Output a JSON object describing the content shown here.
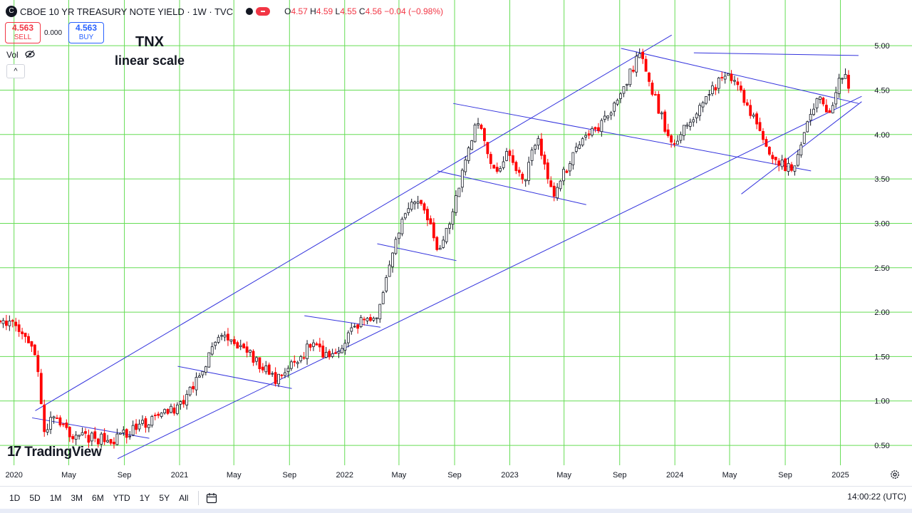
{
  "header": {
    "logo_letter": "C",
    "title": "CBOE 10 YR TREASURY NOTE YIELD · 1W · TVC",
    "ohlc": [
      {
        "k": "O",
        "v": "4.57"
      },
      {
        "k": "H",
        "v": "4.59"
      },
      {
        "k": "L",
        "v": "4.55"
      },
      {
        "k": "C",
        "v": "4.56"
      },
      {
        "k": "",
        "v": "−0.04 (−0.98%)"
      }
    ]
  },
  "trade": {
    "sell_price": "4.563",
    "sell_label": "SELL",
    "spread": "0.000",
    "buy_price": "4.563",
    "buy_label": "BUY"
  },
  "vol_label": "Vol",
  "collapse_glyph": "^",
  "annotation": {
    "line1": "TNX",
    "line2": "linear scale"
  },
  "logo_text": "TradingView",
  "ranges": [
    "1D",
    "5D",
    "1M",
    "3M",
    "6M",
    "YTD",
    "1Y",
    "5Y",
    "All"
  ],
  "clock": "14:00:22 (UTC)",
  "colors": {
    "grid": "#66dd55",
    "up": "#131722",
    "down": "#ff0000",
    "channel": "#3333dd",
    "accent": "#2962ff"
  },
  "chart_data": {
    "type": "candlestick",
    "y_axis_side": "right",
    "y_ticks": [
      0.5,
      1.0,
      1.5,
      2.0,
      2.5,
      3.0,
      3.5,
      4.0,
      4.5,
      5.0
    ],
    "ylim": [
      0.3,
      5.25
    ],
    "x_ticks": [
      "2020",
      "May",
      "Sep",
      "2021",
      "May",
      "Sep",
      "2022",
      "May",
      "Sep",
      "2023",
      "May",
      "Sep",
      "2024",
      "May",
      "Sep",
      "2025"
    ],
    "x_tick_dates": [
      "2020-01",
      "2020-05",
      "2020-09",
      "2021-01",
      "2021-05",
      "2021-09",
      "2022-01",
      "2022-05",
      "2022-09",
      "2023-01",
      "2023-05",
      "2023-09",
      "2024-01",
      "2024-05",
      "2024-09",
      "2025-01"
    ],
    "xlim": [
      "2019-12-01",
      "2025-03-01"
    ],
    "grid": true,
    "anchors": [
      [
        "2019-12-01",
        1.92
      ],
      [
        "2020-01-20",
        1.78
      ],
      [
        "2020-02-20",
        1.48
      ],
      [
        "2020-03-09",
        0.58
      ],
      [
        "2020-03-23",
        0.85
      ],
      [
        "2020-05-01",
        0.63
      ],
      [
        "2020-08-03",
        0.55
      ],
      [
        "2020-10-15",
        0.75
      ],
      [
        "2020-12-30",
        0.93
      ],
      [
        "2021-02-20",
        1.35
      ],
      [
        "2021-03-29",
        1.72
      ],
      [
        "2021-05-25",
        1.6
      ],
      [
        "2021-08-01",
        1.22
      ],
      [
        "2021-09-20",
        1.45
      ],
      [
        "2021-10-20",
        1.65
      ],
      [
        "2021-12-01",
        1.45
      ],
      [
        "2022-01-10",
        1.75
      ],
      [
        "2022-02-20",
        1.95
      ],
      [
        "2022-03-10",
        1.85
      ],
      [
        "2022-05-05",
        3.0
      ],
      [
        "2022-06-13",
        3.3
      ],
      [
        "2022-08-01",
        2.65
      ],
      [
        "2022-10-20",
        4.2
      ],
      [
        "2022-12-01",
        3.55
      ],
      [
        "2022-12-28",
        3.85
      ],
      [
        "2023-02-01",
        3.4
      ],
      [
        "2023-03-01",
        4.0
      ],
      [
        "2023-04-05",
        3.3
      ],
      [
        "2023-05-25",
        3.8
      ],
      [
        "2023-08-20",
        4.3
      ],
      [
        "2023-10-19",
        4.95
      ],
      [
        "2023-11-15",
        4.45
      ],
      [
        "2023-12-27",
        3.85
      ],
      [
        "2024-02-15",
        4.25
      ],
      [
        "2024-04-25",
        4.7
      ],
      [
        "2024-06-01",
        4.4
      ],
      [
        "2024-08-05",
        3.7
      ],
      [
        "2024-09-16",
        3.62
      ],
      [
        "2024-10-20",
        4.1
      ],
      [
        "2024-11-15",
        4.45
      ],
      [
        "2024-12-02",
        4.2
      ],
      [
        "2025-01-10",
        4.75
      ],
      [
        "2025-01-20",
        4.56
      ]
    ],
    "channel_lines": [
      [
        [
          "2020-02-17",
          0.89
        ],
        [
          "2023-12-25",
          5.12
        ]
      ],
      [
        [
          "2020-08-17",
          0.35
        ],
        [
          "2025-02-17",
          4.43
        ]
      ],
      [
        [
          "2024-02-12",
          4.92
        ],
        [
          "2025-02-10",
          4.89
        ]
      ],
      [
        [
          "2024-05-27",
          3.33
        ],
        [
          "2025-02-17",
          4.37
        ]
      ],
      [
        [
          "2023-09-04",
          4.97
        ],
        [
          "2025-02-10",
          4.35
        ]
      ],
      [
        [
          "2022-08-29",
          4.35
        ],
        [
          "2024-10-28",
          3.59
        ]
      ],
      [
        [
          "2022-07-25",
          3.59
        ],
        [
          "2023-06-19",
          3.21
        ]
      ],
      [
        [
          "2022-03-14",
          2.77
        ],
        [
          "2022-09-05",
          2.58
        ]
      ],
      [
        [
          "2021-10-04",
          1.96
        ],
        [
          "2022-03-21",
          1.83
        ]
      ],
      [
        [
          "2020-12-28",
          1.39
        ],
        [
          "2021-09-06",
          1.14
        ]
      ],
      [
        [
          "2020-02-10",
          0.81
        ],
        [
          "2020-10-26",
          0.58
        ]
      ]
    ]
  }
}
